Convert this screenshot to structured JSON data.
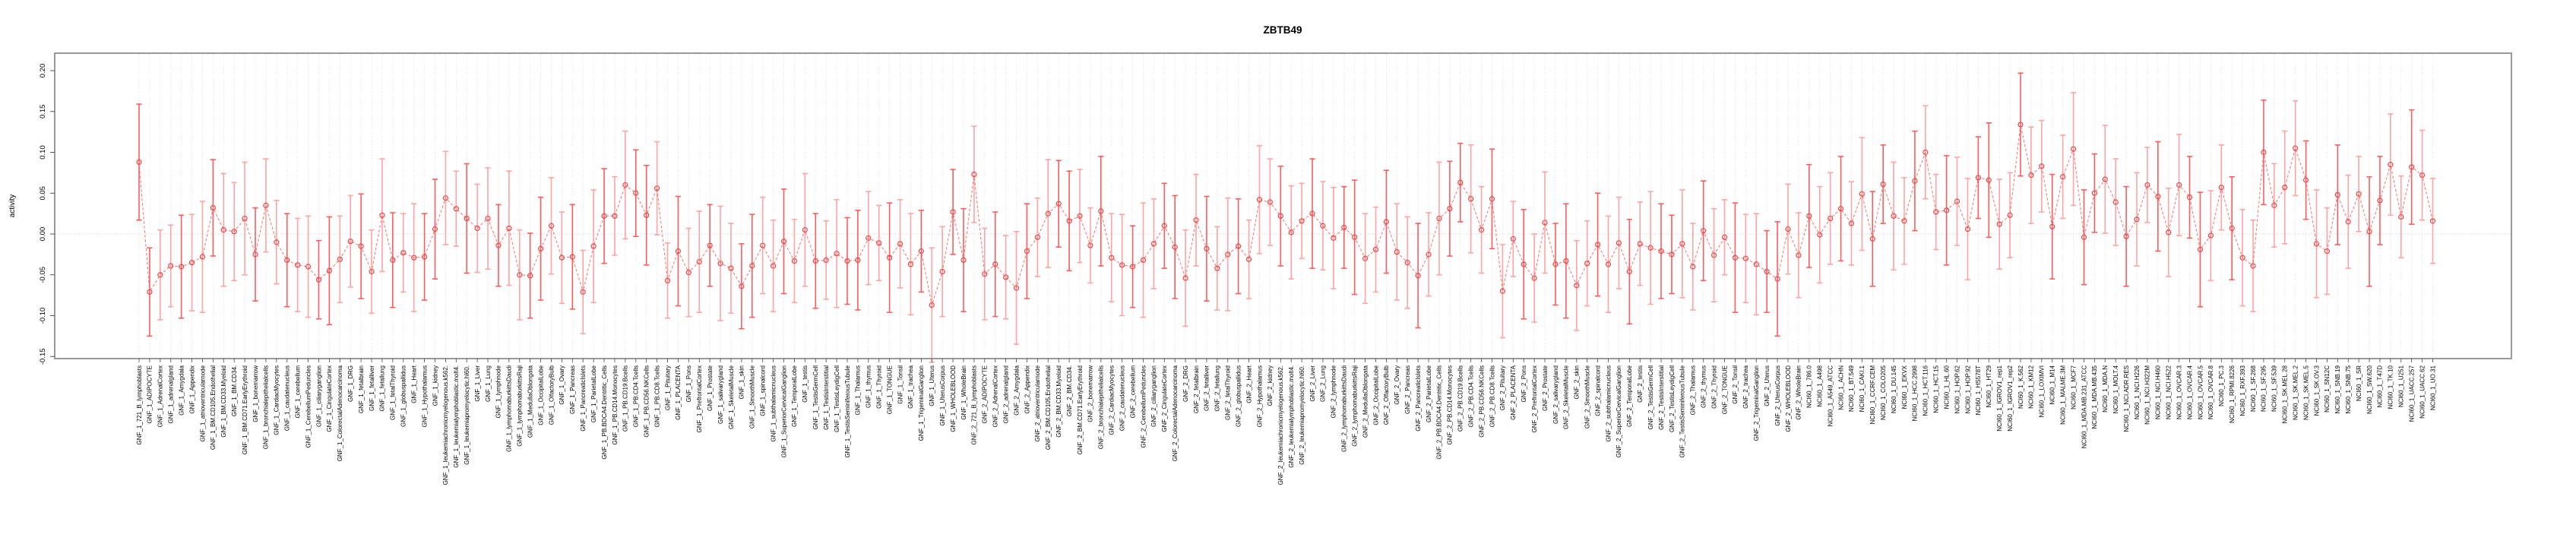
{
  "chart_data": {
    "type": "line-errorbar",
    "title": "ZBTB49",
    "xlabel": "",
    "ylabel": "activity",
    "ylim": [
      -0.17,
      0.225
    ],
    "y_ticks": [
      -0.15,
      -0.1,
      -0.05,
      0.0,
      0.05,
      0.1,
      0.15,
      0.2
    ],
    "y_tick_labels": [
      "-0.15",
      "-0.10",
      "-0.05",
      "0.00",
      "0.05",
      "0.10",
      "0.15",
      "0.20"
    ],
    "zero_line": 0,
    "grid": "vertical-dotted-per-category",
    "legend": "none",
    "groups": [
      {
        "prefix": "GNF_1_",
        "tissues_ref": "gnf_panel"
      },
      {
        "prefix": "GNF_2_",
        "tissues_ref": "gnf_panel"
      },
      {
        "prefix": "NCI60_1_",
        "tissues_ref": "nci60_panel"
      }
    ],
    "gnf_panel": [
      "721_B_lymphoblasts",
      "ADIPOCYTE",
      "AdrenalCortex",
      "adrenalgland",
      "Amygdala",
      "Appendix",
      "atrioventricularnode",
      "BM.CD105.Endothelial",
      "BM.CD33.Myeloid",
      "BM.CD34.",
      "BM.CD71.EarlyErythroid",
      "bonemarrow",
      "bronchialepithelialcells",
      "CardiacMyocytes",
      "caudatenucleus",
      "cerebellum",
      "CerebellumPeduncles",
      "ciliaryganglion",
      "CingulateCortex",
      "ColorectalAdenocarcinoma",
      "DRG",
      "fetalbrain",
      "fetalliver",
      "fetallung",
      "fetalThyroid",
      "globuspallidus",
      "Heart",
      "Hypothalamus",
      "kidney",
      "leukemiachronicmyelogenous.k562.",
      "leukemialymphoblastic.molt4.",
      "leukemiapromyelocytic.hl60.",
      "Liver",
      "Lung",
      "lymphnode",
      "lymphomaburkittsDaudi",
      "lymphomaburkittsRaji",
      "MedullaOblongata",
      "OccipitalLobe",
      "OlfactoryBulb",
      "Ovary",
      "Pancreas",
      "PancreaticIslets",
      "ParietalLobe",
      "PB.BDCA4.Dentritic_Cells",
      "PB.CD14.Monocytes",
      "PB.CD19.Bcells",
      "PB.CD4.Tcells",
      "PB.CD56.NKCells",
      "PB.CD8.Tcells",
      "Pituitary",
      "PLACENTA",
      "Pons",
      "PrefrontalCortex",
      "Prostate",
      "salivarygland",
      "SkeletalMuscle",
      "skin",
      "SmoothMuscle",
      "spinalcord",
      "subthalamicnucleus",
      "SuperiorCervicalGanglion",
      "TemporalLobe",
      "testis",
      "TestisGermCell",
      "TestisInterstitial",
      "TestisLeydigCell",
      "TestisSeminiferousTubule",
      "Thalamus",
      "thymus",
      "Thyroid",
      "TONGUE",
      "Tonsil",
      "trachea",
      "TrigeminalGanglion",
      "Uterus",
      "UterusCorpus",
      "WHOLEBLOOD",
      "WholeBrain"
    ],
    "nci60_panel": [
      "786.0",
      "A498",
      "A549_ATCC",
      "ACHN",
      "BT.549",
      "CAKI.1",
      "CCRF.CEM",
      "COLO205",
      "DU.145",
      "EKVX",
      "HCC.2998",
      "HCT.116",
      "HCT.15",
      "HL.60",
      "HOP.62",
      "HOP.92",
      "HS578T",
      "HT29",
      "IGROV1_rep1",
      "IGROV1_rep2",
      "K.562",
      "KM12",
      "LOXIMVI",
      "M14",
      "MALME.3M",
      "MCF7",
      "MDA.MB.231_ATCC",
      "MDA.MB.435",
      "MDA.N",
      "MOLT.4",
      "NCI.ADR.RES",
      "NCI.H226",
      "NCI.H322M",
      "NCI.H460",
      "NCI.H522",
      "OVCAR.3",
      "OVCAR.4",
      "OVCAR.5",
      "OVCAR.8",
      "PC.3",
      "RPMI.8226",
      "RXF.393",
      "SF.268",
      "SF.295",
      "SF.539",
      "SK.MEL.28",
      "SK.MEL.2",
      "SK.MEL.5",
      "SK.OV.3",
      "SN12C",
      "SNB.19",
      "SNB.75",
      "SR",
      "SW.620",
      "T47D",
      "TK.10",
      "U251",
      "UACC.257",
      "UACC.62",
      "UO.31"
    ],
    "values": [
      0.088,
      -0.071,
      -0.05,
      -0.039,
      -0.04,
      -0.035,
      -0.028,
      0.032,
      0.005,
      0.003,
      0.019,
      -0.025,
      0.035,
      -0.01,
      -0.032,
      -0.038,
      -0.04,
      -0.056,
      -0.045,
      -0.031,
      -0.009,
      -0.015,
      -0.046,
      0.023,
      -0.032,
      -0.023,
      -0.029,
      -0.028,
      0.006,
      0.044,
      0.031,
      0.019,
      0.007,
      0.019,
      -0.014,
      0.007,
      -0.05,
      -0.051,
      -0.018,
      0.01,
      -0.029,
      -0.028,
      -0.071,
      -0.015,
      0.022,
      0.022,
      0.06,
      0.05,
      0.023,
      0.056,
      -0.057,
      -0.021,
      -0.047,
      -0.034,
      -0.014,
      -0.036,
      -0.042,
      -0.064,
      -0.039,
      -0.014,
      -0.039,
      -0.009,
      -0.033,
      0.005,
      -0.033,
      -0.032,
      -0.024,
      -0.033,
      -0.032,
      -0.005,
      -0.011,
      -0.029,
      -0.012,
      -0.037,
      -0.021,
      -0.087,
      -0.046,
      0.027,
      -0.032,
      0.073,
      -0.049,
      -0.037,
      -0.053,
      -0.066,
      -0.021,
      -0.004,
      0.025,
      0.037,
      0.016,
      0.022,
      -0.014,
      0.028,
      -0.029,
      -0.038,
      -0.04,
      -0.032,
      -0.012,
      0.01,
      -0.016,
      -0.054,
      0.017,
      -0.018,
      -0.042,
      -0.025,
      -0.015,
      -0.031,
      0.042,
      0.039,
      0.022,
      0.002,
      0.016,
      0.025,
      0.01,
      -0.005,
      0.008,
      -0.004,
      -0.03,
      -0.019,
      0.015,
      -0.022,
      -0.035,
      -0.051,
      -0.025,
      0.019,
      0.031,
      0.063,
      0.043,
      0.005,
      0.043,
      -0.07,
      -0.006,
      -0.037,
      -0.054,
      0.014,
      -0.037,
      -0.033,
      -0.063,
      -0.036,
      -0.013,
      -0.037,
      -0.011,
      -0.046,
      -0.012,
      -0.017,
      -0.021,
      -0.025,
      -0.012,
      -0.04,
      0.004,
      -0.026,
      -0.004,
      -0.029,
      -0.03,
      -0.037,
      -0.046,
      -0.055,
      0.006,
      -0.026,
      0.022,
      -0.001,
      0.019,
      0.031,
      0.013,
      0.049,
      -0.006,
      0.061,
      0.022,
      0.016,
      0.065,
      0.1,
      0.027,
      0.029,
      0.04,
      0.006,
      0.069,
      0.066,
      0.012,
      0.023,
      0.134,
      0.072,
      0.083,
      0.009,
      0.07,
      0.104,
      -0.004,
      0.05,
      0.067,
      0.039,
      -0.003,
      0.018,
      0.06,
      0.046,
      0.002,
      0.06,
      0.045,
      -0.019,
      -0.002,
      0.057,
      0.007,
      -0.029,
      -0.039,
      0.1,
      0.035,
      0.057,
      0.105,
      0.066,
      -0.012,
      -0.021,
      0.048,
      0.015,
      0.049,
      0.003,
      0.041,
      0.085,
      0.021,
      0.082,
      0.072,
      0.016
    ],
    "errors": [
      0.071,
      0.054,
      0.055,
      0.05,
      0.063,
      0.059,
      0.068,
      0.059,
      0.069,
      0.06,
      0.069,
      0.057,
      0.057,
      0.051,
      0.057,
      0.057,
      0.062,
      0.048,
      0.066,
      0.053,
      0.056,
      0.064,
      0.051,
      0.069,
      0.058,
      0.048,
      0.066,
      0.053,
      0.061,
      0.057,
      0.046,
      0.067,
      0.054,
      0.062,
      0.05,
      0.07,
      0.055,
      0.052,
      0.063,
      0.059,
      0.056,
      0.064,
      0.051,
      0.069,
      0.058,
      0.048,
      0.066,
      0.053,
      0.061,
      0.057,
      0.046,
      0.067,
      0.054,
      0.062,
      0.05,
      0.07,
      0.055,
      0.052,
      0.063,
      0.059,
      0.056,
      0.064,
      0.051,
      0.069,
      0.058,
      0.048,
      0.066,
      0.053,
      0.061,
      0.057,
      0.046,
      0.067,
      0.054,
      0.062,
      0.05,
      0.07,
      0.055,
      0.052,
      0.063,
      0.059,
      0.056,
      0.064,
      0.051,
      0.069,
      0.058,
      0.048,
      0.066,
      0.053,
      0.061,
      0.057,
      0.046,
      0.067,
      0.054,
      0.062,
      0.05,
      0.07,
      0.055,
      0.052,
      0.063,
      0.059,
      0.056,
      0.064,
      0.051,
      0.069,
      0.058,
      0.048,
      0.066,
      0.053,
      0.061,
      0.057,
      0.046,
      0.067,
      0.054,
      0.062,
      0.05,
      0.07,
      0.055,
      0.052,
      0.063,
      0.059,
      0.056,
      0.064,
      0.051,
      0.069,
      0.058,
      0.048,
      0.066,
      0.053,
      0.061,
      0.057,
      0.046,
      0.067,
      0.054,
      0.062,
      0.05,
      0.07,
      0.055,
      0.052,
      0.063,
      0.059,
      0.056,
      0.064,
      0.051,
      0.069,
      0.058,
      0.048,
      0.066,
      0.053,
      0.061,
      0.057,
      0.046,
      0.067,
      0.054,
      0.062,
      0.05,
      0.07,
      0.055,
      0.052,
      0.063,
      0.059,
      0.056,
      0.064,
      0.051,
      0.069,
      0.058,
      0.048,
      0.066,
      0.053,
      0.061,
      0.057,
      0.046,
      0.067,
      0.054,
      0.062,
      0.05,
      0.07,
      0.055,
      0.052,
      0.063,
      0.059,
      0.056,
      0.064,
      0.051,
      0.069,
      0.058,
      0.048,
      0.066,
      0.053,
      0.061,
      0.057,
      0.046,
      0.067,
      0.054,
      0.062,
      0.05,
      0.07,
      0.055,
      0.052,
      0.063,
      0.059,
      0.056,
      0.064,
      0.051,
      0.069,
      0.058,
      0.048,
      0.066,
      0.053,
      0.061,
      0.057,
      0.046,
      0.067,
      0.054,
      0.062,
      0.05,
      0.07,
      0.055,
      0.052
    ],
    "colors": {
      "point": "#f14343",
      "line": "#f87070",
      "bar_light": "#ffa3a3",
      "bar_strong": "#fb5d5d",
      "grid": "#d6d6d6",
      "zero_line": "#c9c9c9",
      "frame": "#8f8f8f",
      "text": "#000000"
    }
  }
}
